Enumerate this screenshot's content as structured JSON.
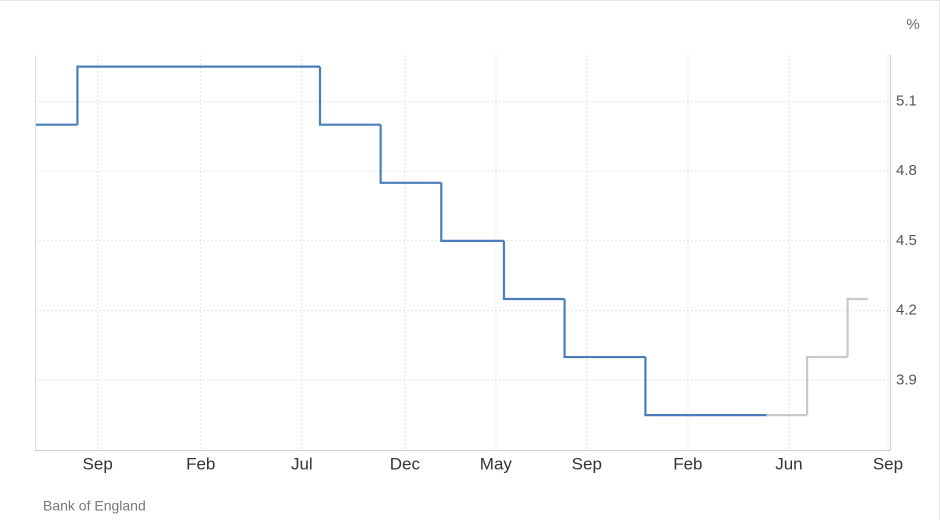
{
  "chart_data": {
    "type": "step",
    "unit_label": "%",
    "source": "Bank of England",
    "xlim": [
      0,
      42.3
    ],
    "xticks": [
      {
        "value": 3.1,
        "label": "Sep"
      },
      {
        "value": 8.2,
        "label": "Feb"
      },
      {
        "value": 13.2,
        "label": "Jul"
      },
      {
        "value": 18.3,
        "label": "Dec"
      },
      {
        "value": 22.8,
        "label": "May"
      },
      {
        "value": 27.3,
        "label": "Sep"
      },
      {
        "value": 32.3,
        "label": "Feb"
      },
      {
        "value": 37.3,
        "label": "Jun"
      },
      {
        "value": 42.2,
        "label": "Sep"
      }
    ],
    "ylim": [
      3.6,
      5.3
    ],
    "yticks": [
      3.9,
      4.2,
      4.5,
      4.8,
      5.1
    ],
    "grid": true,
    "series": [
      {
        "color": "#4a7ebb",
        "x": [
          0,
          2.1,
          14.1,
          17.1,
          20.1,
          23.2,
          26.2,
          30.2,
          36.2
        ],
        "values": [
          5.0,
          5.25,
          5.0,
          4.75,
          4.5,
          4.25,
          4.0,
          3.75,
          3.75
        ]
      },
      {
        "color": "#c8c8c8",
        "x": [
          36.2,
          38.2,
          40.2,
          41.2
        ],
        "values": [
          3.75,
          4.0,
          4.25,
          4.25
        ]
      }
    ]
  }
}
